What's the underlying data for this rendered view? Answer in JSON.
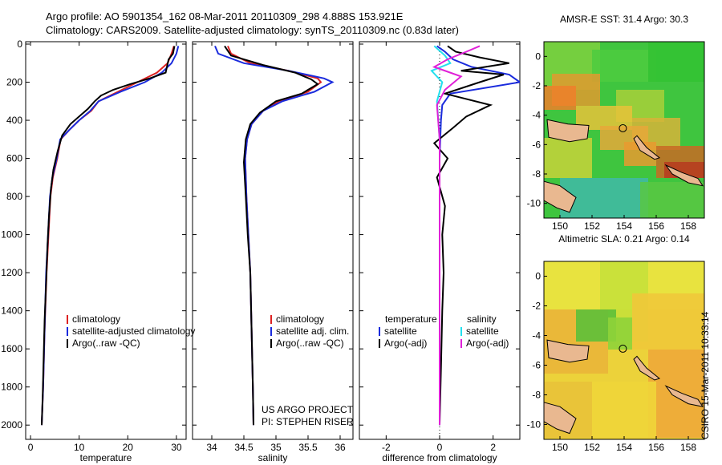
{
  "header": {
    "line1": "Argo profile: AO 5901354_162 08-Mar-2011 20110309_298 4.888S 153.921E",
    "line2": "Climatology: CARS2009. Satellite-adjusted climatology: synTS_20110309.nc (0.83d later)"
  },
  "credit": "CSIRO 15-Mar-2011 10:33:14",
  "colors": {
    "red": "#dd2222",
    "blue": "#1a2bdd",
    "black": "#000000",
    "cyan": "#22e0ee",
    "magenta": "#e020d8",
    "green": "#33c633",
    "land": "#e9b890"
  },
  "chart_data": [
    {
      "type": "line",
      "panel": "temperature",
      "xlabel": "temperature",
      "ylabel": "",
      "xlim": [
        -1,
        32
      ],
      "ylim": [
        2030,
        0
      ],
      "xticks": [
        "0",
        "10",
        "20",
        "30"
      ],
      "yticks": [
        "0",
        "200",
        "400",
        "600",
        "800",
        "1000",
        "1200",
        "1400",
        "1600",
        "1800",
        "2000"
      ],
      "series": [
        {
          "name": "climatology",
          "color": "red",
          "x": [
            29.5,
            29,
            28.2,
            26,
            22,
            18,
            14,
            12.5,
            10,
            8,
            6.2,
            5.5,
            4.6,
            4.1,
            3.7,
            3.3,
            2.9,
            2.6,
            2.3
          ],
          "y": [
            10,
            50,
            100,
            150,
            200,
            250,
            300,
            350,
            400,
            450,
            500,
            600,
            700,
            800,
            1000,
            1200,
            1500,
            1800,
            2000
          ]
        },
        {
          "name": "satellite-adjusted climatology",
          "color": "blue",
          "x": [
            30.4,
            30,
            29,
            27,
            23.5,
            18.5,
            14,
            12.3,
            10,
            8,
            6.1,
            5.4,
            4.5,
            4.0,
            3.6,
            3.2,
            2.9,
            2.6,
            2.3
          ],
          "y": [
            10,
            50,
            100,
            150,
            200,
            250,
            300,
            350,
            400,
            450,
            500,
            600,
            700,
            800,
            1000,
            1200,
            1500,
            1800,
            2000
          ]
        },
        {
          "name": "Argo(..raw -QC)",
          "color": "black",
          "x": [
            29.6,
            29.3,
            28.4,
            27.8,
            24.5,
            20.5,
            17,
            14.5,
            13.2,
            11.8,
            10,
            8.2,
            6.5,
            5.6,
            4.7,
            4.2,
            3.8,
            3.5,
            3.2,
            2.9,
            2.7,
            2.5,
            2.3
          ],
          "y": [
            10,
            50,
            80,
            150,
            180,
            210,
            240,
            270,
            300,
            340,
            380,
            420,
            480,
            560,
            660,
            760,
            900,
            1050,
            1250,
            1450,
            1650,
            1850,
            2000
          ]
        }
      ],
      "legend": [
        "climatology",
        "satellite-adjusted climatology",
        "Argo(..raw -QC)"
      ]
    },
    {
      "type": "line",
      "panel": "salinity",
      "xlabel": "salinity",
      "xlim": [
        33.7,
        36.2
      ],
      "ylim": [
        2030,
        0
      ],
      "xticks": [
        "34",
        "34.5",
        "35",
        "35.5",
        "36"
      ],
      "series": [
        {
          "name": "climatology",
          "color": "red",
          "x": [
            34.25,
            34.3,
            34.6,
            35.2,
            35.65,
            35.7,
            35.5,
            35.05,
            34.8,
            34.62,
            34.55,
            34.52,
            34.54,
            34.57,
            34.6,
            34.62,
            34.64,
            34.65
          ],
          "y": [
            10,
            50,
            100,
            140,
            180,
            200,
            250,
            300,
            350,
            420,
            500,
            600,
            800,
            1000,
            1200,
            1500,
            1800,
            2000
          ]
        },
        {
          "name": "satellite adj. clim.",
          "color": "blue",
          "x": [
            34.05,
            34.1,
            34.5,
            35.2,
            35.75,
            35.88,
            35.6,
            35.1,
            34.8,
            34.62,
            34.55,
            34.52,
            34.54,
            34.57,
            34.6,
            34.62,
            34.64,
            34.65
          ],
          "y": [
            10,
            50,
            100,
            140,
            180,
            200,
            250,
            300,
            350,
            420,
            500,
            600,
            800,
            1000,
            1200,
            1500,
            1800,
            2000
          ]
        },
        {
          "name": "Argo(..raw -QC)",
          "color": "black",
          "x": [
            34.2,
            34.3,
            34.8,
            35.3,
            35.55,
            35.65,
            35.4,
            35.0,
            34.75,
            34.6,
            34.53,
            34.5,
            34.53,
            34.56,
            34.6,
            34.62,
            34.64,
            34.65
          ],
          "y": [
            10,
            60,
            110,
            150,
            185,
            210,
            260,
            300,
            360,
            420,
            500,
            620,
            800,
            1000,
            1200,
            1500,
            1800,
            2000
          ]
        }
      ],
      "legend": [
        "climatology",
        "satellite adj. clim.",
        "Argo(..raw -QC)"
      ],
      "annotation": [
        "US ARGO PROJECT",
        "PI: STEPHEN RISER"
      ]
    },
    {
      "type": "line",
      "panel": "difference",
      "xlabel": "difference from climatology",
      "xlim": [
        -3,
        3
      ],
      "ylim": [
        2030,
        0
      ],
      "xticks": [
        "-2",
        "0",
        "2"
      ],
      "series": [
        {
          "name": "temperature satellite",
          "color": "blue",
          "x": [
            -0.1,
            0.2,
            0.5,
            1.2,
            2.6,
            3.0,
            0.4,
            0.1,
            0.05,
            0,
            0,
            0,
            0,
            0
          ],
          "y": [
            10,
            40,
            80,
            120,
            160,
            200,
            260,
            320,
            400,
            600,
            1000,
            1400,
            1800,
            2000
          ]
        },
        {
          "name": "temperature Argo(-adj)",
          "color": "black",
          "x": [
            0.3,
            0.6,
            1.5,
            2.6,
            0.8,
            2.4,
            1.5,
            0.2,
            1.9,
            1.0,
            0.5,
            -0.2,
            0.3,
            -0.1,
            0.2,
            0.1,
            0.15,
            0.1,
            0.05,
            0
          ],
          "y": [
            10,
            40,
            70,
            100,
            140,
            160,
            200,
            260,
            320,
            380,
            440,
            520,
            600,
            700,
            850,
            1000,
            1200,
            1400,
            1700,
            2000
          ]
        },
        {
          "name": "salinity satellite",
          "color": "cyan",
          "x": [
            -0.2,
            0.2,
            0.4,
            -0.3,
            0.1,
            -0.1,
            0,
            0,
            0
          ],
          "y": [
            10,
            60,
            100,
            140,
            200,
            300,
            500,
            1000,
            2000
          ]
        },
        {
          "name": "salinity Argo(-adj)",
          "color": "magenta",
          "x": [
            1.5,
            1.0,
            0.3,
            -0.2,
            0.8,
            0.2,
            -0.1,
            0,
            0
          ],
          "y": [
            10,
            40,
            80,
            120,
            170,
            240,
            320,
            500,
            2000
          ]
        }
      ],
      "legend_groups": [
        {
          "title": "temperature",
          "items": [
            "satellite",
            "Argo(-adj)"
          ]
        },
        {
          "title": "salinity",
          "items": [
            "satellite",
            "Argo(-adj)"
          ]
        }
      ]
    },
    {
      "type": "heatmap",
      "panel": "map-sst",
      "title": "AMSR-E SST: 31.4  Argo: 30.3",
      "xlim": [
        149,
        159
      ],
      "ylim": [
        -11,
        1
      ],
      "xticks": [
        "150",
        "152",
        "154",
        "156",
        "158"
      ],
      "yticks": [
        "0",
        "-2",
        "-4",
        "-6",
        "-8",
        "-10"
      ],
      "float_position": {
        "lon": 153.921,
        "lat": -4.888
      }
    },
    {
      "type": "heatmap",
      "panel": "map-sla",
      "title": "Altimetric SLA: 0.21  Argo: 0.14",
      "xlim": [
        149,
        159
      ],
      "ylim": [
        -11,
        1
      ],
      "xticks": [
        "150",
        "152",
        "154",
        "156",
        "158"
      ],
      "yticks": [
        "0",
        "-2",
        "-4",
        "-6",
        "-8",
        "-10"
      ],
      "float_position": {
        "lon": 153.921,
        "lat": -4.888
      }
    }
  ]
}
